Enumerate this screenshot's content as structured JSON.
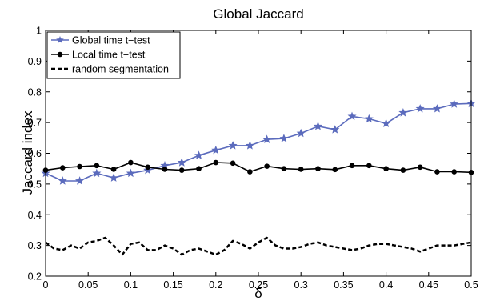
{
  "chart_data": {
    "type": "line",
    "title": "Global Jaccard",
    "xlabel": "δ",
    "ylabel": "Jaccard index",
    "xlim": [
      0,
      0.5
    ],
    "ylim": [
      0.2,
      1
    ],
    "xticks": [
      0,
      0.05,
      0.1,
      0.15,
      0.2,
      0.25,
      0.3,
      0.35,
      0.4,
      0.45,
      0.5
    ],
    "xtick_labels": [
      "0",
      "0.05",
      "0.1",
      "0.15",
      "0.2",
      "0.25",
      "0.3",
      "0.35",
      "0.4",
      "0.45",
      "0.5"
    ],
    "yticks": [
      0.2,
      0.3,
      0.4,
      0.5,
      0.6,
      0.7,
      0.8,
      0.9,
      1
    ],
    "ytick_labels": [
      "0.2",
      "0.3",
      "0.4",
      "0.5",
      "0.6",
      "0.7",
      "0.8",
      "0.9",
      "1"
    ],
    "grid": false,
    "legend_position": "top-left",
    "series": [
      {
        "name": "Global time t−test",
        "color": "#5b6bbd",
        "marker": "star",
        "line_style": "solid",
        "x": [
          0,
          0.02,
          0.04,
          0.06,
          0.08,
          0.1,
          0.12,
          0.14,
          0.16,
          0.18,
          0.2,
          0.22,
          0.24,
          0.26,
          0.28,
          0.3,
          0.32,
          0.34,
          0.36,
          0.38,
          0.4,
          0.42,
          0.44,
          0.46,
          0.48,
          0.5
        ],
        "values": [
          0.535,
          0.51,
          0.51,
          0.535,
          0.52,
          0.535,
          0.545,
          0.56,
          0.57,
          0.593,
          0.61,
          0.625,
          0.625,
          0.645,
          0.648,
          0.665,
          0.688,
          0.677,
          0.72,
          0.712,
          0.697,
          0.732,
          0.745,
          0.745,
          0.76,
          0.762
        ]
      },
      {
        "name": "Local time t−test",
        "color": "#000000",
        "marker": "circle",
        "line_style": "solid",
        "x": [
          0,
          0.02,
          0.04,
          0.06,
          0.08,
          0.1,
          0.12,
          0.14,
          0.16,
          0.18,
          0.2,
          0.22,
          0.24,
          0.26,
          0.28,
          0.3,
          0.32,
          0.34,
          0.36,
          0.38,
          0.4,
          0.42,
          0.44,
          0.46,
          0.48,
          0.5
        ],
        "values": [
          0.545,
          0.553,
          0.557,
          0.56,
          0.548,
          0.57,
          0.555,
          0.548,
          0.545,
          0.55,
          0.57,
          0.568,
          0.54,
          0.558,
          0.55,
          0.548,
          0.55,
          0.547,
          0.56,
          0.56,
          0.55,
          0.545,
          0.555,
          0.54,
          0.54,
          0.538
        ]
      },
      {
        "name": "random segmentation",
        "color": "#000000",
        "marker": "none",
        "line_style": "dashed",
        "x": [
          0,
          0.01,
          0.02,
          0.03,
          0.04,
          0.05,
          0.06,
          0.07,
          0.08,
          0.09,
          0.1,
          0.11,
          0.12,
          0.13,
          0.14,
          0.15,
          0.16,
          0.17,
          0.18,
          0.19,
          0.2,
          0.21,
          0.22,
          0.23,
          0.24,
          0.25,
          0.26,
          0.27,
          0.28,
          0.29,
          0.3,
          0.31,
          0.32,
          0.33,
          0.34,
          0.35,
          0.36,
          0.37,
          0.38,
          0.39,
          0.4,
          0.41,
          0.42,
          0.43,
          0.44,
          0.45,
          0.46,
          0.47,
          0.48,
          0.49,
          0.5
        ],
        "values": [
          0.31,
          0.29,
          0.285,
          0.3,
          0.29,
          0.31,
          0.315,
          0.325,
          0.3,
          0.27,
          0.305,
          0.31,
          0.285,
          0.285,
          0.3,
          0.29,
          0.27,
          0.285,
          0.29,
          0.28,
          0.27,
          0.285,
          0.315,
          0.305,
          0.29,
          0.31,
          0.325,
          0.3,
          0.29,
          0.29,
          0.295,
          0.305,
          0.31,
          0.3,
          0.295,
          0.29,
          0.285,
          0.29,
          0.3,
          0.305,
          0.305,
          0.3,
          0.295,
          0.29,
          0.28,
          0.29,
          0.3,
          0.3,
          0.3,
          0.305,
          0.31
        ]
      }
    ]
  }
}
